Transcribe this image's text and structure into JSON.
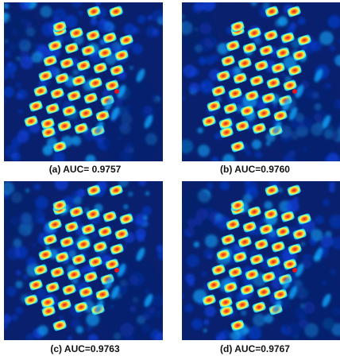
{
  "figure": {
    "panels": [
      {
        "caption": "(a) AUC= 0.9757"
      },
      {
        "caption": "(b) AUC=0.9760"
      },
      {
        "caption": "(c) AUC=0.9763"
      },
      {
        "caption": "(d) AUC=0.9767"
      }
    ],
    "colormap": [
      "#08206e",
      "#0a3fd6",
      "#11a8ff",
      "#35f0e8",
      "#fff64a",
      "#ff8a1e",
      "#e5121a"
    ]
  }
}
